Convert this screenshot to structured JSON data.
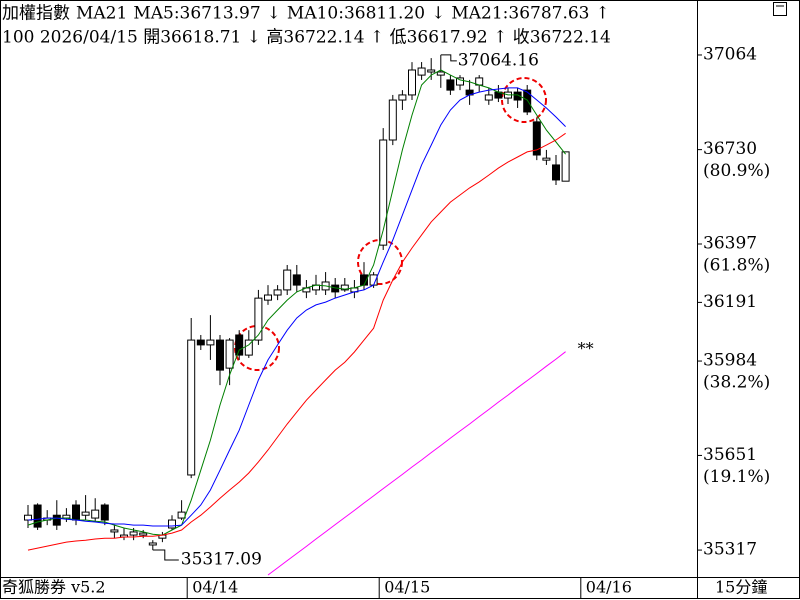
{
  "chart_data": {
    "type": "candlestick",
    "title": "加權指數",
    "indicator": "MA21",
    "info_line": "100 2026/04/15 開36618.71 ↓ 高36722.14 ↑ 低36617.92 ↑ 收36722.14",
    "brand": "奇狐勝券 v5.2",
    "period": "15分鐘",
    "marker": "**",
    "categories": [
      null,
      null,
      null,
      null,
      null,
      null,
      null,
      null,
      null,
      null,
      null,
      null,
      null,
      null,
      null,
      null,
      null,
      "04/14",
      null,
      null,
      null,
      null,
      null,
      null,
      null,
      null,
      null,
      null,
      null,
      null,
      null,
      null,
      null,
      null,
      null,
      null,
      null,
      "04/15",
      null,
      null,
      null,
      null,
      null,
      null,
      null,
      null,
      null,
      null,
      null,
      null,
      null,
      null,
      null,
      null,
      null,
      null,
      null,
      null,
      "04/16"
    ],
    "open": [
      35423,
      35476,
      35423,
      35440,
      35430,
      35476,
      35440,
      35430,
      35476,
      35381,
      35363,
      35370,
      35370,
      35335,
      35359,
      35395,
      35430,
      35582,
      36058,
      36041,
      36058,
      35959,
      36076,
      36005,
      36058,
      36199,
      36217,
      36235,
      36288,
      36228,
      36235,
      36235,
      36252,
      36235,
      36228,
      36288,
      36252,
      36393,
      36764,
      36905,
      36923,
      36993,
      37004,
      36993,
      36976,
      36958,
      36940,
      36958,
      36905,
      36933,
      36912,
      36933,
      36940,
      36828,
      36693,
      36676,
      36618.71,
      null,
      null
    ],
    "high": [
      35476,
      35482,
      35458,
      35493,
      35465,
      35493,
      35511,
      35500,
      35482,
      35405,
      35395,
      35395,
      35388,
      35352,
      35381,
      35440,
      35493,
      36136,
      36076,
      36146,
      36076,
      36065,
      36093,
      36093,
      36235,
      36252,
      36252,
      36323,
      36323,
      36270,
      36288,
      36298,
      36277,
      36277,
      36270,
      36333,
      36298,
      36806,
      36923,
      36940,
      37039,
      37039,
      37053,
      37064.16,
      36993,
      36993,
      36976,
      36993,
      36948,
      36958,
      36948,
      36948,
      36958,
      36842,
      36729,
      36711,
      36722.14,
      null,
      null
    ],
    "low": [
      35395,
      35388,
      35405,
      35388,
      35416,
      35405,
      35423,
      35416,
      35405,
      35359,
      35352,
      35352,
      35359,
      35317.09,
      35345,
      35388,
      35423,
      35571,
      36023,
      35988,
      35899,
      35899,
      35988,
      35995,
      36041,
      36182,
      36199,
      36217,
      36228,
      36206,
      36217,
      36217,
      36206,
      36228,
      36206,
      36235,
      36242,
      36376,
      36746,
      36870,
      36905,
      36976,
      36976,
      36948,
      36923,
      36940,
      36888,
      36933,
      36888,
      36898,
      36891,
      36877,
      36852,
      36693,
      36676,
      36605,
      36617.92,
      null,
      null
    ],
    "close": [
      35440,
      35398,
      35430,
      35405,
      35440,
      35423,
      35451,
      35458,
      35423,
      35388,
      35370,
      35381,
      35377,
      35342,
      35370,
      35423,
      35451,
      36058,
      36041,
      36058,
      35952,
      36058,
      36005,
      36058,
      36206,
      36217,
      36235,
      36305,
      36252,
      36242,
      36252,
      36263,
      36228,
      36252,
      36242,
      36252,
      36288,
      36764,
      36905,
      36923,
      37011,
      37018,
      37011,
      37004,
      36940,
      36983,
      36923,
      36983,
      36923,
      36912,
      36933,
      36905,
      36863,
      36711,
      36700,
      36623,
      36722.14,
      null,
      null
    ],
    "series": [
      {
        "name": "MA5:36713.97",
        "arrow": "↓",
        "color": "#008000",
        "values": [
          35405,
          35416,
          35423,
          35430,
          35430,
          35423,
          35423,
          35419,
          35416,
          35405,
          35395,
          35388,
          35381,
          35373,
          35370,
          35388,
          35405,
          35493,
          35599,
          35705,
          35829,
          35935,
          36023,
          36041,
          36076,
          36129,
          36164,
          36199,
          36228,
          36242,
          36252,
          36249,
          36242,
          36238,
          36242,
          36252,
          36323,
          36446,
          36588,
          36729,
          36852,
          36958,
          36993,
          37011,
          36993,
          36976,
          36969,
          36958,
          36948,
          36933,
          36923,
          36923,
          36905,
          36852,
          36799,
          36757,
          36713.97,
          null,
          null
        ]
      },
      {
        "name": "MA10:36811.20",
        "arrow": "↓",
        "color": "#0000ff",
        "values": [
          35423,
          35426,
          35430,
          35430,
          35426,
          35423,
          35419,
          35416,
          35412,
          35409,
          35409,
          35405,
          35405,
          35402,
          35402,
          35402,
          35405,
          35440,
          35476,
          35529,
          35599,
          35670,
          35740,
          35829,
          35917,
          35988,
          36041,
          36093,
          36136,
          36164,
          36182,
          36192,
          36206,
          36217,
          36228,
          36235,
          36252,
          36333,
          36411,
          36499,
          36588,
          36676,
          36746,
          36817,
          36870,
          36905,
          36923,
          36933,
          36940,
          36944,
          36948,
          36948,
          36933,
          36905,
          36877,
          36845,
          36811.2,
          null,
          null
        ]
      },
      {
        "name": "MA21:36787.63",
        "arrow": "↑",
        "color": "#ff0000",
        "values": [
          35317,
          35324,
          35331,
          35338,
          35345,
          35349,
          35352,
          35356,
          35359,
          35359,
          35363,
          35363,
          35366,
          35366,
          35370,
          35377,
          35388,
          35416,
          35440,
          35469,
          35500,
          35529,
          35557,
          35589,
          35628,
          35670,
          35716,
          35762,
          35804,
          35846,
          35882,
          35917,
          35952,
          35980,
          36016,
          36058,
          36100,
          36199,
          36270,
          36333,
          36383,
          36429,
          36475,
          36510,
          36545,
          36570,
          36595,
          36616,
          36640,
          36665,
          36686,
          36704,
          36722,
          36729,
          36746,
          36764,
          36787.63,
          null,
          null
        ]
      },
      {
        "color": "#ff00ff",
        "values": [
          null,
          null,
          null,
          null,
          null,
          null,
          null,
          null,
          null,
          null,
          null,
          null,
          null,
          null,
          null,
          null,
          null,
          null,
          null,
          null,
          null,
          null,
          null,
          null,
          null,
          35229,
          35254,
          35280,
          35305,
          35330,
          35356,
          35381,
          35407,
          35432,
          35457,
          35483,
          35508,
          35534,
          35559,
          35584,
          35610,
          35635,
          35661,
          35686,
          35712,
          35737,
          35762,
          35788,
          35813,
          35839,
          35864,
          35890,
          35915,
          35940,
          35966,
          35991,
          36017,
          null,
          null
        ]
      }
    ],
    "ylim": [
      35222,
      37258
    ],
    "yticks": [
      37064,
      36730,
      36397,
      36191,
      35984,
      35651,
      35317
    ],
    "retracement_labels": [
      {
        "value": 36730,
        "label": "(80.9%)"
      },
      {
        "value": 36397,
        "label": "(61.8%)"
      },
      {
        "value": 35984,
        "label": "(38.2%)"
      },
      {
        "value": 35651,
        "label": "(19.1%)"
      }
    ],
    "up_color": "#ffffff",
    "down_color": "#000000"
  }
}
